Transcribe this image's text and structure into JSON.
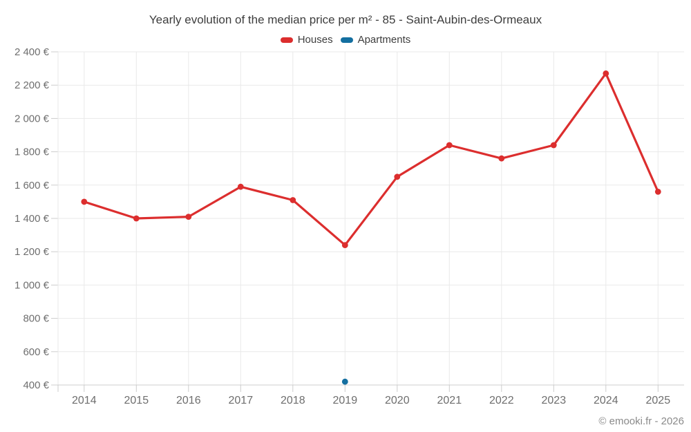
{
  "header": {
    "title": "Yearly evolution of the median price per m² - 85 - Saint-Aubin-des-Ormeaux"
  },
  "footer": {
    "copyright": "© emooki.fr - 2026"
  },
  "colors": {
    "houses": "#dc2e2e",
    "apartments": "#146fa0",
    "grid": "#e9e9e9",
    "axis": "#cccccc",
    "tick": "#cccccc"
  },
  "chart_data": {
    "type": "line",
    "title": "Yearly evolution of the median price per m² - 85 - Saint-Aubin-des-Ormeaux",
    "categories": [
      "2014",
      "2015",
      "2016",
      "2017",
      "2018",
      "2019",
      "2020",
      "2021",
      "2022",
      "2023",
      "2024",
      "2025"
    ],
    "series": [
      {
        "name": "Houses",
        "color": "#dc2e2e",
        "values": [
          1500,
          1400,
          1410,
          1590,
          1510,
          1240,
          1650,
          1840,
          1760,
          1840,
          2270,
          1560
        ]
      },
      {
        "name": "Apartments",
        "color": "#146fa0",
        "values": [
          null,
          null,
          null,
          null,
          null,
          420,
          null,
          null,
          null,
          null,
          null,
          null
        ]
      }
    ],
    "xlabel": "",
    "ylabel": "",
    "ylim": [
      400,
      2400
    ],
    "ytick_step": 200,
    "yticks": {
      "values": [
        400,
        600,
        800,
        1000,
        1200,
        1400,
        1600,
        1800,
        2000,
        2200,
        2400
      ],
      "labels": [
        "400 €",
        "600 €",
        "800 €",
        "1 000 €",
        "1 200 €",
        "1 400 €",
        "1 600 €",
        "1 800 €",
        "2 000 €",
        "2 200 €",
        "2 400 €"
      ]
    },
    "grid": true,
    "legend_position": "top"
  }
}
